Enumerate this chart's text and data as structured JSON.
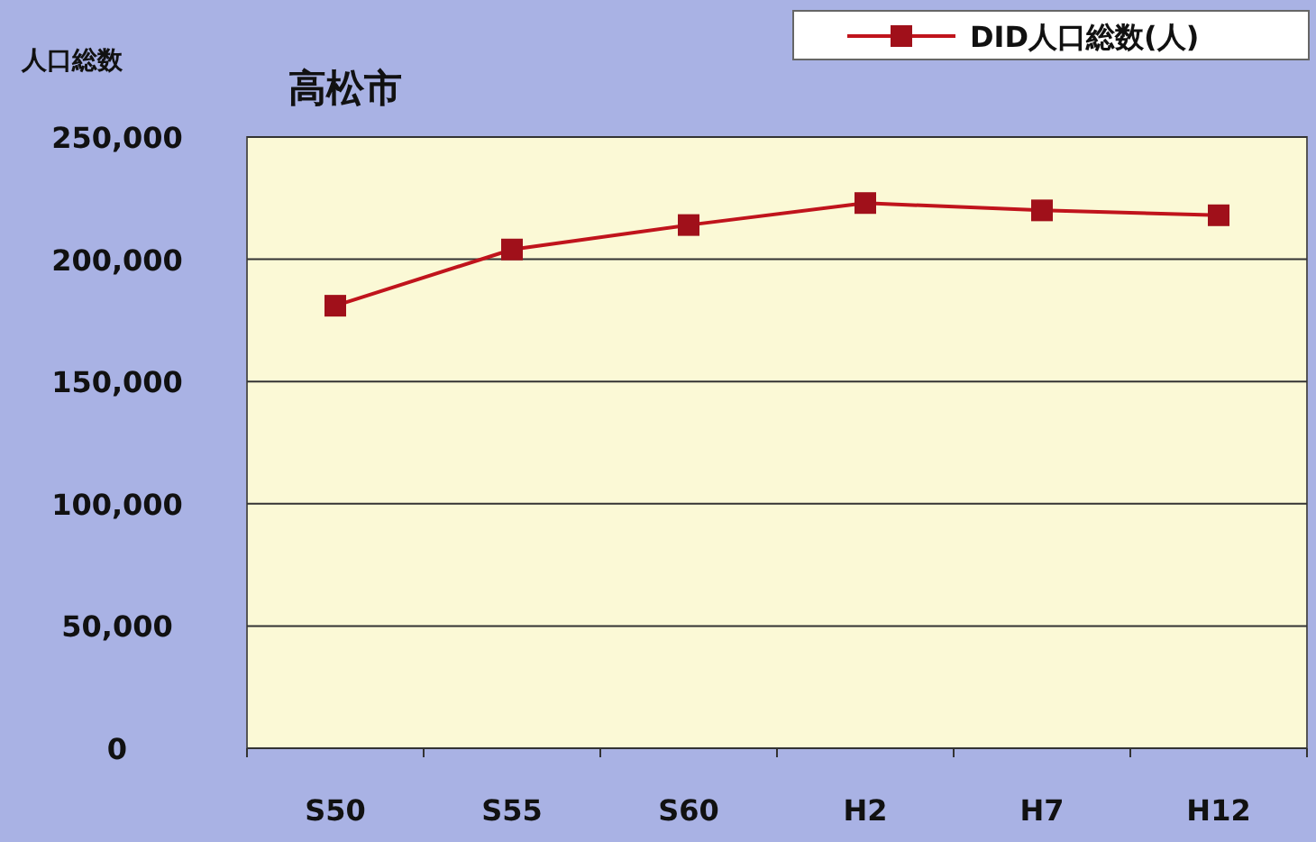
{
  "chart_data": {
    "type": "line",
    "title": "高松市",
    "ylabel": "人口総数",
    "categories": [
      "S50",
      "S55",
      "S60",
      "H2",
      "H7",
      "H12"
    ],
    "series": [
      {
        "name": "DID人口総数(人)",
        "color": "#c0141c",
        "values": [
          181000,
          204000,
          214000,
          223000,
          220000,
          218000
        ]
      }
    ],
    "ylim": [
      0,
      250000
    ],
    "yticks": [
      {
        "value": 0,
        "label": "0"
      },
      {
        "value": 50000,
        "label": "50,000"
      },
      {
        "value": 100000,
        "label": "100,000"
      },
      {
        "value": 150000,
        "label": "150,000"
      },
      {
        "value": 200000,
        "label": "200,000"
      },
      {
        "value": 250000,
        "label": "250,000"
      }
    ],
    "grid": "y",
    "legend": "top right",
    "marker": "square",
    "line_style": "solid"
  }
}
